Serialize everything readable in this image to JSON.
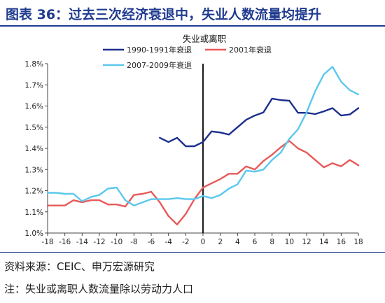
{
  "header": {
    "title": "图表 36：过去三次经济衰退中，失业人数流量均提升"
  },
  "footer": {
    "source": "资料来源：CEIC、申万宏源研究",
    "note": "注：失业或离职人数流量除以劳动力人口"
  },
  "chart_data": {
    "type": "line",
    "title": "失业或离职",
    "xlabel": "",
    "ylabel": "",
    "xlim": [
      -18,
      18
    ],
    "ylim": [
      1.0,
      1.8
    ],
    "x_ticks": [
      "-18",
      "-16",
      "-14",
      "-12",
      "-10",
      "-8",
      "-6",
      "-4",
      "-2",
      "0",
      "2",
      "4",
      "6",
      "8",
      "10",
      "12",
      "14",
      "16",
      "18"
    ],
    "y_ticks": [
      "1.0%",
      "1.1%",
      "1.2%",
      "1.3%",
      "1.4%",
      "1.5%",
      "1.6%",
      "1.7%",
      "1.8%"
    ],
    "y_tick_values": [
      1.0,
      1.1,
      1.2,
      1.3,
      1.4,
      1.5,
      1.6,
      1.7,
      1.8
    ],
    "vertical_marker_x": 0,
    "grid": false,
    "legend_position": "top",
    "series": [
      {
        "name": "1990-1991年衰退",
        "color": "#1B2F8C",
        "x": [
          -5,
          -4,
          -3,
          -2,
          -1,
          0,
          1,
          2,
          3,
          4,
          5,
          6,
          7,
          8,
          9,
          10,
          11,
          12,
          13,
          14,
          15,
          16,
          17,
          18
        ],
        "values": [
          1.45,
          1.43,
          1.45,
          1.41,
          1.41,
          1.43,
          1.48,
          1.475,
          1.465,
          1.5,
          1.535,
          1.555,
          1.57,
          1.635,
          1.628,
          1.625,
          1.568,
          1.568,
          1.562,
          1.575,
          1.59,
          1.555,
          1.56,
          1.59
        ]
      },
      {
        "name": "2001年衰退",
        "color": "#E8595A",
        "x": [
          -18,
          -17,
          -16,
          -15,
          -14,
          -13,
          -12,
          -11,
          -10,
          -9,
          -8,
          -7,
          -6,
          -5,
          -4,
          -3,
          -2,
          -1,
          0,
          1,
          2,
          3,
          4,
          5,
          6,
          7,
          8,
          9,
          10,
          11,
          12,
          13,
          14,
          15,
          16,
          17,
          18
        ],
        "values": [
          1.13,
          1.13,
          1.13,
          1.155,
          1.145,
          1.155,
          1.155,
          1.135,
          1.135,
          1.125,
          1.18,
          1.185,
          1.195,
          1.145,
          1.08,
          1.04,
          1.09,
          1.16,
          1.215,
          1.235,
          1.255,
          1.28,
          1.28,
          1.315,
          1.3,
          1.34,
          1.37,
          1.405,
          1.435,
          1.4,
          1.38,
          1.345,
          1.31,
          1.33,
          1.315,
          1.345,
          1.32
        ]
      },
      {
        "name": "2007-2009年衰退",
        "color": "#5BC8EE",
        "x": [
          -18,
          -17,
          -16,
          -15,
          -14,
          -13,
          -12,
          -11,
          -10,
          -9,
          -8,
          -7,
          -6,
          -5,
          -4,
          -3,
          -2,
          -1,
          0,
          1,
          2,
          3,
          4,
          5,
          6,
          7,
          8,
          9,
          10,
          11,
          12,
          13,
          14,
          15,
          16,
          17,
          18
        ],
        "values": [
          1.19,
          1.19,
          1.185,
          1.185,
          1.15,
          1.17,
          1.18,
          1.21,
          1.215,
          1.155,
          1.13,
          1.145,
          1.16,
          1.16,
          1.16,
          1.165,
          1.16,
          1.16,
          1.175,
          1.165,
          1.18,
          1.21,
          1.23,
          1.295,
          1.29,
          1.3,
          1.345,
          1.38,
          1.445,
          1.49,
          1.57,
          1.67,
          1.75,
          1.785,
          1.715,
          1.675,
          1.655
        ]
      }
    ]
  }
}
